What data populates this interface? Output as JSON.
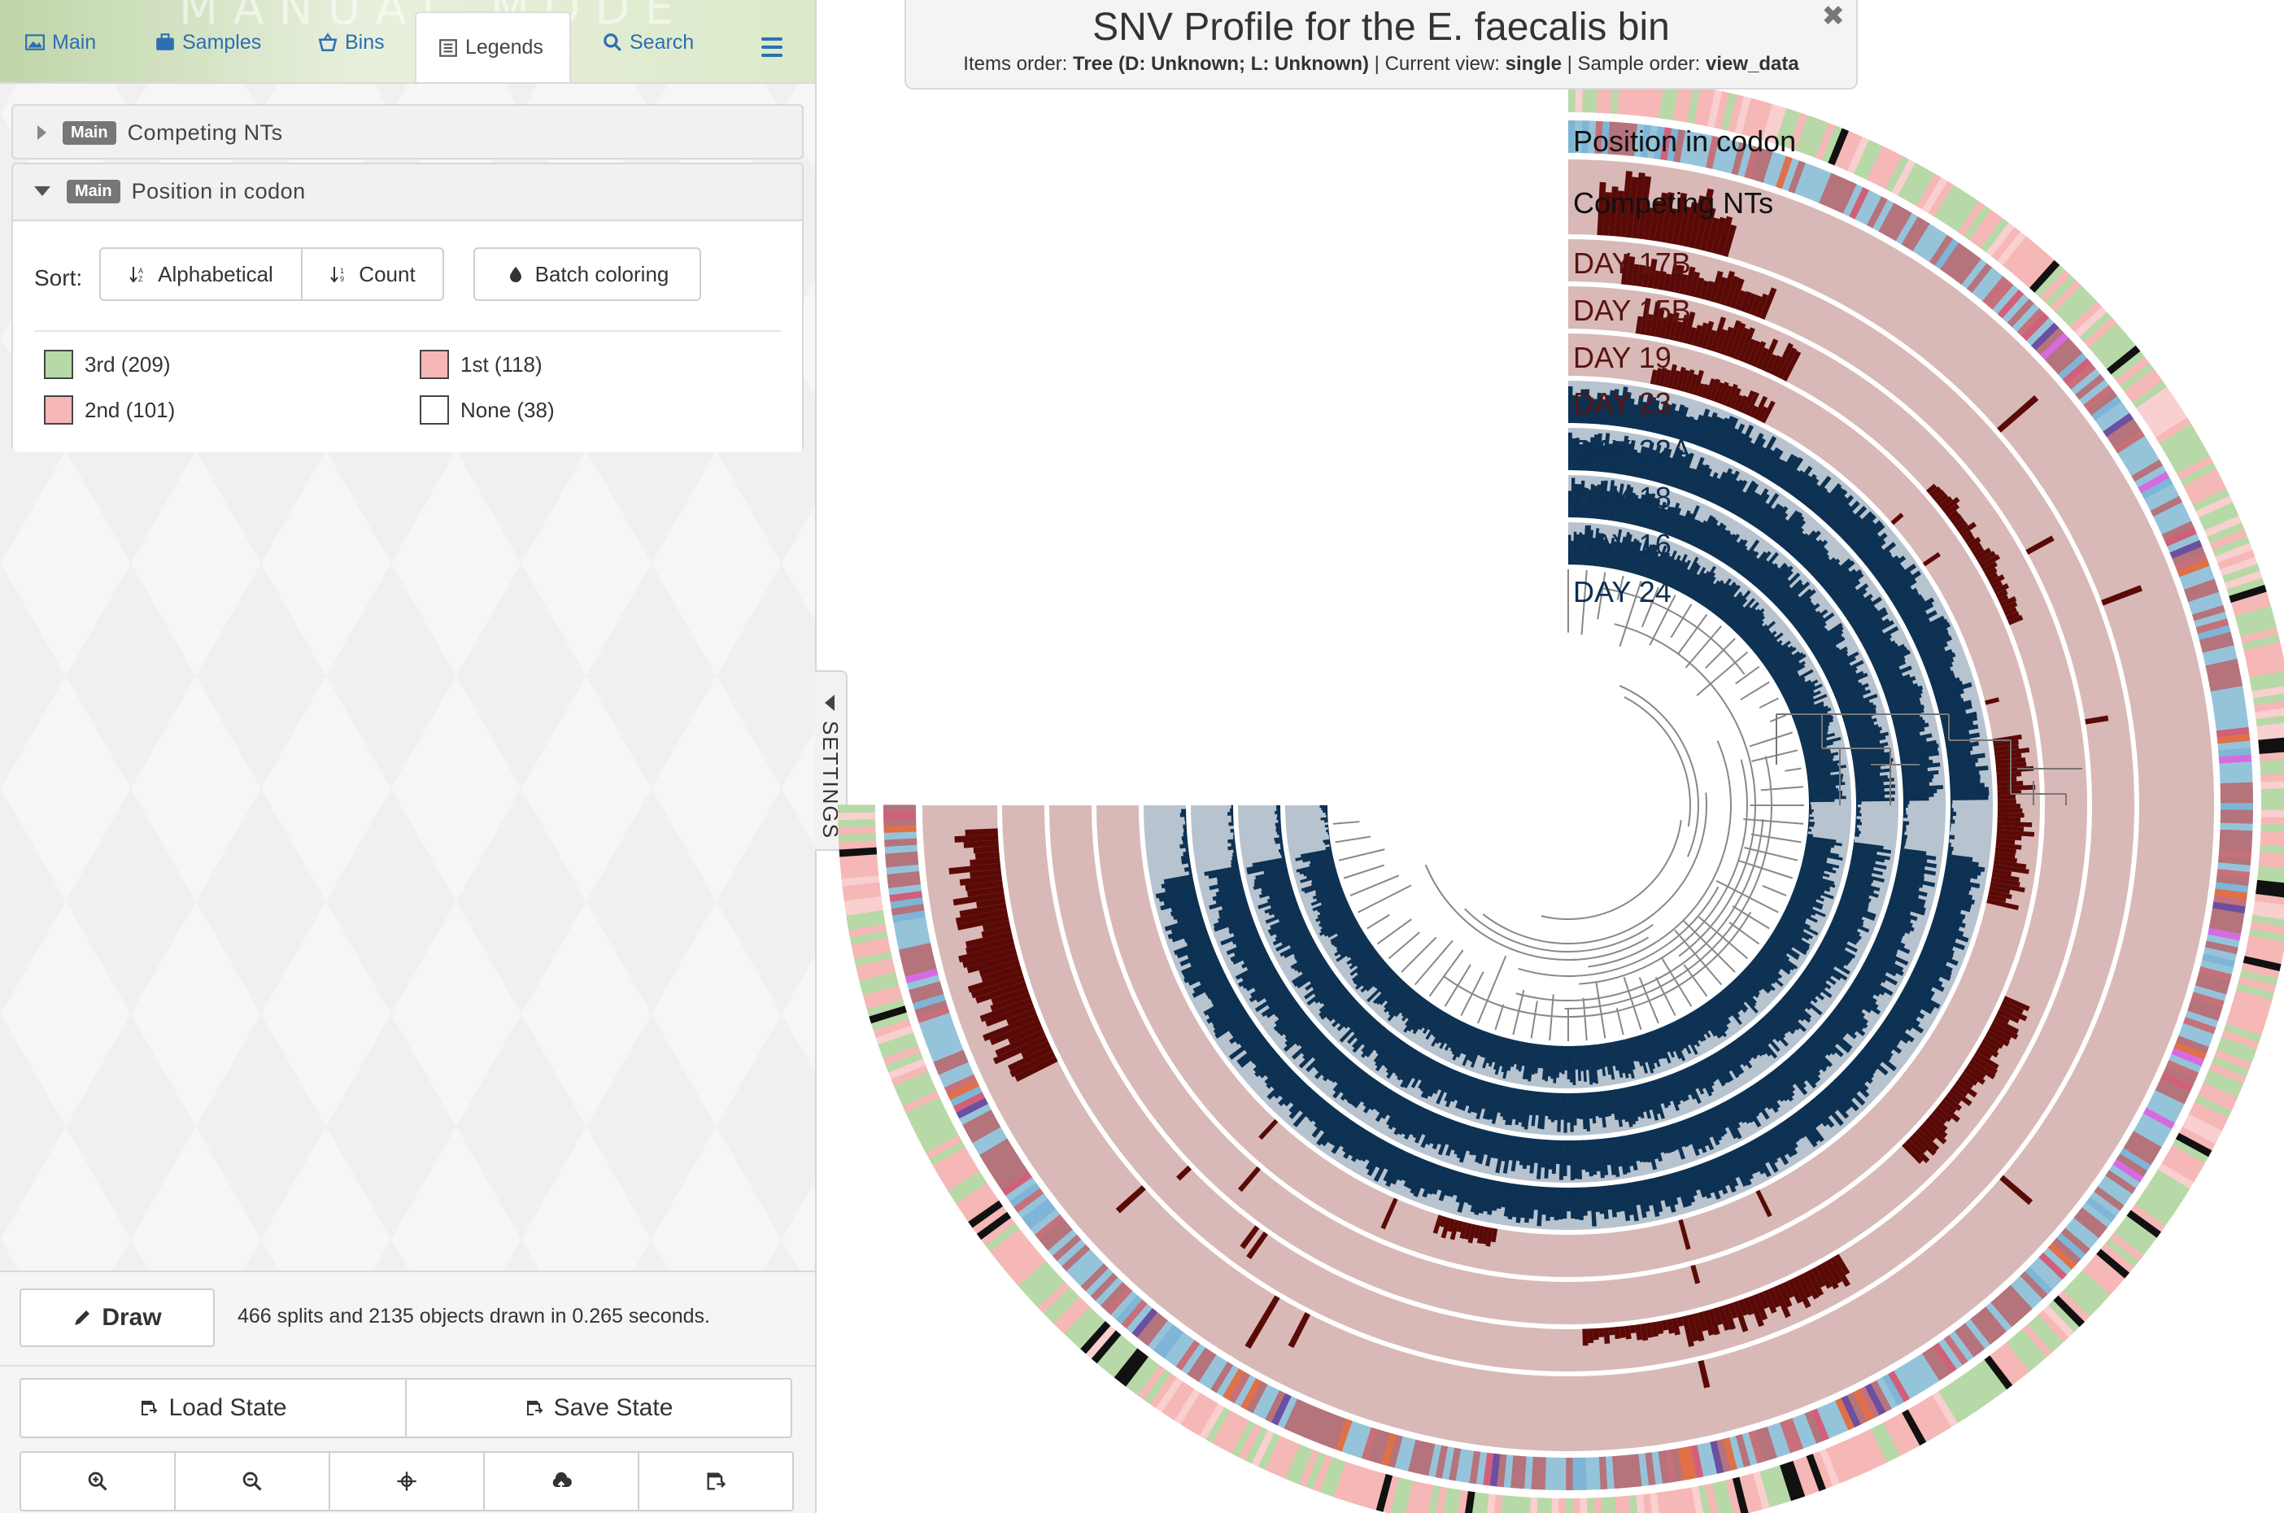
{
  "tabs": [
    {
      "label": "Main",
      "icon": "image-icon"
    },
    {
      "label": "Samples",
      "icon": "briefcase-icon"
    },
    {
      "label": "Bins",
      "icon": "basket-icon"
    },
    {
      "label": "Legends",
      "icon": "list-icon"
    },
    {
      "label": "Search",
      "icon": "search-icon"
    }
  ],
  "watermark": "MANUAL MODE",
  "legend_rows": {
    "competing": {
      "badge": "Main",
      "title": "Competing NTs"
    },
    "codon": {
      "badge": "Main",
      "title": "Position in codon"
    }
  },
  "legend_panel": {
    "sort_label": "Sort:",
    "alphabetical": "Alphabetical",
    "count": "Count",
    "batch": "Batch coloring",
    "items": [
      {
        "label": "3rd (209)",
        "color": "#b7d9a7"
      },
      {
        "label": "1st (118)",
        "color": "#f6b7b7"
      },
      {
        "label": "2nd (101)",
        "color": "#f6b7b7"
      },
      {
        "label": "None (38)",
        "color": "#ffffff"
      }
    ]
  },
  "bottom": {
    "draw": "Draw",
    "status": "466 splits and 2135 objects drawn in 0.265 seconds.",
    "load": "Load State",
    "save": "Save State",
    "tools": [
      "zoom-in-icon",
      "zoom-out-icon",
      "center-icon",
      "cloud-upload-icon",
      "save-icon"
    ]
  },
  "settings_label": "SETTINGS",
  "title": {
    "main": "SNV Profile for the E. faecalis bin",
    "items_order_label": "Items order:",
    "items_order_value": "Tree (D: Unknown; L: Unknown)",
    "current_view_label": "Current view:",
    "current_view_value": "single",
    "sample_order_label": "Sample order:",
    "sample_order_value": "view_data",
    "sep": "|"
  },
  "layers": [
    {
      "label": "Position in codon",
      "color": "#111111",
      "type": "categorical"
    },
    {
      "label": "Competing NTs",
      "color": "#111111",
      "type": "categorical"
    },
    {
      "label": "DAY 17B",
      "color": "#5a1410",
      "type": "bars-red"
    },
    {
      "label": "DAY 15B",
      "color": "#5a1410",
      "type": "bars-red"
    },
    {
      "label": "DAY 19",
      "color": "#5a1410",
      "type": "bars-red"
    },
    {
      "label": "DAY 23",
      "color": "#5a1410",
      "type": "bars-red"
    },
    {
      "label": "DAY 22A",
      "color": "#0d2f52",
      "type": "bars-blue"
    },
    {
      "label": "DAY 18",
      "color": "#0d2f52",
      "type": "bars-blue"
    },
    {
      "label": "DAY 16",
      "color": "#0d2f52",
      "type": "bars-blue"
    },
    {
      "label": "DAY 24",
      "color": "#0d2f52",
      "type": "bars-blue"
    }
  ],
  "colors": {
    "red_bg": "#d8b9b7",
    "red_bar": "#5a0a06",
    "blue_bg": "#b7c3cf",
    "blue_bar": "#0d3152",
    "codon_green": "#b7d9a7",
    "codon_pink": "#f6b7b7",
    "nts_palette": [
      "#b5737c",
      "#95c4da",
      "#c6717a",
      "#7fb5d6",
      "#d0607a",
      "#e07048",
      "#6b4fa0",
      "#d66be0"
    ]
  }
}
